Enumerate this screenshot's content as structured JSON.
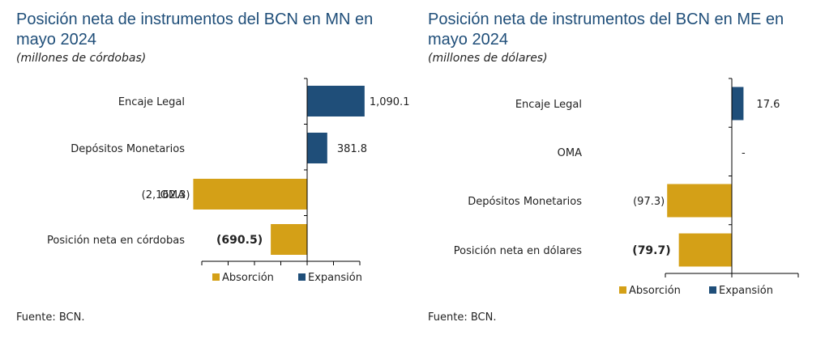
{
  "chart_data": [
    {
      "type": "bar",
      "title": "Posición neta de instrumentos del BCN en MN en mayo 2024",
      "subtitle": "(millones de córdobas)",
      "categories": [
        "Encaje Legal",
        "Depósitos Monetarios",
        "OMA",
        "Posición neta en córdobas"
      ],
      "values": [
        1090.1,
        381.8,
        -2162.3,
        -690.5
      ],
      "value_labels": [
        "1,090.1",
        "381.8",
        "(2,162.3)",
        "(690.5)"
      ],
      "bold_last_label": true,
      "xlim": [
        -3000,
        1500
      ],
      "legend": [
        "Absorción",
        "Expansión"
      ],
      "source": "Fuente: BCN."
    },
    {
      "type": "bar",
      "title": "Posición neta de instrumentos del BCN en ME en mayo 2024",
      "subtitle": "(millones de dólares)",
      "categories": [
        "Encaje Legal",
        "OMA",
        "Depósitos Monetarios",
        "Posición neta en dólares"
      ],
      "values": [
        17.6,
        0,
        -97.3,
        -79.7
      ],
      "value_labels": [
        "17.6",
        "-",
        "(97.3)",
        "(79.7)"
      ],
      "bold_last_label": true,
      "xlim": [
        -100,
        100
      ],
      "legend": [
        "Absorción",
        "Expansión"
      ],
      "source": "Fuente: BCN."
    }
  ],
  "colors": {
    "absorcion": "#d4a017",
    "expansion": "#1f4e79",
    "title": "#1f4e79"
  }
}
